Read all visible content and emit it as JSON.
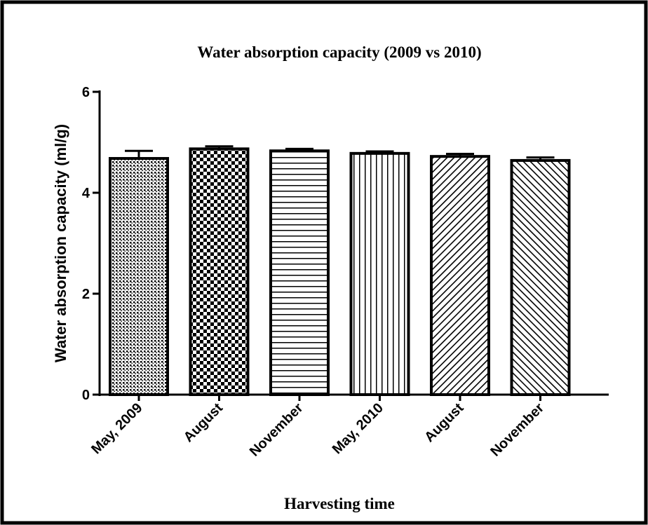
{
  "chart_data": {
    "type": "bar",
    "title": "Water absorption capacity (2009 vs 2010)",
    "xlabel": "Harvesting time",
    "ylabel": "Water absorption capacity (ml/g)",
    "categories": [
      "May, 2009",
      "August",
      "November",
      "May, 2010",
      "August",
      "November"
    ],
    "values": [
      4.68,
      4.87,
      4.83,
      4.78,
      4.72,
      4.64
    ],
    "errors": [
      0.15,
      0.05,
      0.04,
      0.04,
      0.05,
      0.06
    ],
    "color": "#000000",
    "ylim": [
      0,
      6
    ],
    "yticks": [
      0,
      2,
      4,
      6
    ],
    "grid": false
  }
}
